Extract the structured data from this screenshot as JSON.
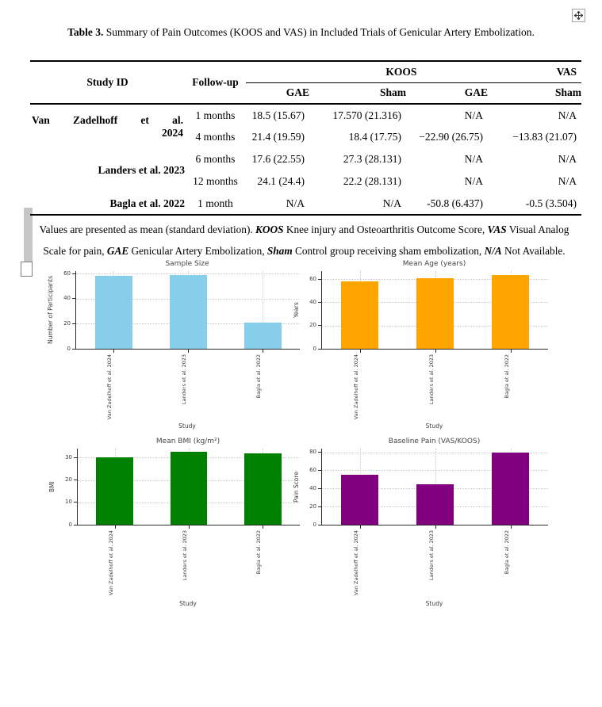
{
  "artifacts": {
    "move_handle_icon": "move-handle",
    "change_bar": "revision-bar",
    "anchor_square": "anchor-handle"
  },
  "table": {
    "caption": {
      "label": "Table 3.",
      "text": " Summary of Pain Outcomes (KOOS and VAS) in Included Trials of Genicular Artery Embolization."
    },
    "header": {
      "study_id": "Study ID",
      "follow_up": "Follow-up",
      "koos": "KOOS",
      "vas": "VAS",
      "sub": [
        "GAE",
        "Sham",
        "GAE",
        "Sham"
      ]
    },
    "groups": [
      {
        "study": "Van Zadelhoff et al.",
        "study_line2": "2024",
        "rows": [
          {
            "follow_up": "1 months",
            "koos_gae": "18.5 (15.67)",
            "koos_sham": "17.570 (21.316)",
            "vas_gae": "N/A",
            "vas_sham": "N/A"
          },
          {
            "follow_up": "4 months",
            "koos_gae": "21.4 (19.59)",
            "koos_sham": "18.4 (17.75)",
            "vas_gae": "−22.90 (26.75)",
            "vas_sham": "−13.83 (21.07)"
          }
        ]
      },
      {
        "study": "Landers et al. 2023",
        "rows": [
          {
            "follow_up": "6 months",
            "koos_gae": "17.6 (22.55)",
            "koos_sham": "27.3 (28.131)",
            "vas_gae": "N/A",
            "vas_sham": "N/A"
          },
          {
            "follow_up": "12 months",
            "koos_gae": "24.1 (24.4)",
            "koos_sham": "22.2 (28.131)",
            "vas_gae": "N/A",
            "vas_sham": "N/A"
          }
        ]
      },
      {
        "study": "Bagla et al. 2022",
        "rows": [
          {
            "follow_up": "1 month",
            "koos_gae": "N/A",
            "koos_sham": "N/A",
            "vas_gae": "-50.8 (6.437)",
            "vas_sham": "-0.5 (3.504)"
          }
        ]
      }
    ],
    "footnote_segments": [
      {
        "text": "Values are presented as mean (standard deviation). ",
        "style": "normal"
      },
      {
        "text": "KOOS",
        "style": "bi"
      },
      {
        "text": " Knee injury and Osteoarthritis Outcome Score, ",
        "style": "normal"
      },
      {
        "text": "VAS",
        "style": "bi"
      },
      {
        "text": " Visual Analog Scale for pain, ",
        "style": "normal"
      },
      {
        "text": "GAE",
        "style": "bi"
      },
      {
        "text": " Genicular Artery Embolization, ",
        "style": "normal"
      },
      {
        "text": "Sham",
        "style": "bi"
      },
      {
        "text": " Control group receiving sham embolization, ",
        "style": "normal"
      },
      {
        "text": "N/A",
        "style": "bi"
      },
      {
        "text": " Not Available.",
        "style": "normal"
      }
    ]
  },
  "chart_data": [
    {
      "type": "bar",
      "title": "Sample Size",
      "xlabel": "Study",
      "ylabel": "Number of Participants",
      "categories": [
        "Van Zadelhoff et al. 2024",
        "Landers et al. 2023",
        "Bagla et al. 2022"
      ],
      "values": [
        58,
        59,
        21
      ],
      "color": "#87CEEB",
      "yticks": [
        0,
        20,
        40,
        60
      ],
      "ylim": [
        0,
        62
      ],
      "grid": true,
      "legend": false
    },
    {
      "type": "bar",
      "title": "Mean Age (years)",
      "xlabel": "Study",
      "ylabel": "Years",
      "categories": [
        "Van Zadelhoff et al. 2024",
        "Landers et al. 2023",
        "Bagla et al. 2022"
      ],
      "values": [
        58,
        61,
        63.5
      ],
      "color": "#FFA500",
      "yticks": [
        0,
        20,
        40,
        60
      ],
      "ylim": [
        0,
        67
      ],
      "grid": true,
      "legend": false
    },
    {
      "type": "bar",
      "title": "Mean BMI (kg/m²)",
      "xlabel": "Study",
      "ylabel": "BMI",
      "categories": [
        "Van Zadelhoff et al. 2024",
        "Landers et al. 2023",
        "Bagla et al. 2022"
      ],
      "values": [
        30,
        32.5,
        32
      ],
      "color": "#008000",
      "yticks": [
        0,
        10,
        20,
        30
      ],
      "ylim": [
        0,
        34
      ],
      "grid": true,
      "legend": false
    },
    {
      "type": "bar",
      "title": "Baseline Pain (VAS/KOOS)",
      "xlabel": "Study",
      "ylabel": "Pain Score",
      "categories": [
        "Van Zadelhoff et al. 2024",
        "Landers et al. 2023",
        "Bagla et al. 2022"
      ],
      "values": [
        55,
        44.5,
        80
      ],
      "color": "#800080",
      "yticks": [
        0,
        20,
        40,
        60,
        80
      ],
      "ylim": [
        0,
        84
      ],
      "grid": true,
      "legend": false
    }
  ]
}
